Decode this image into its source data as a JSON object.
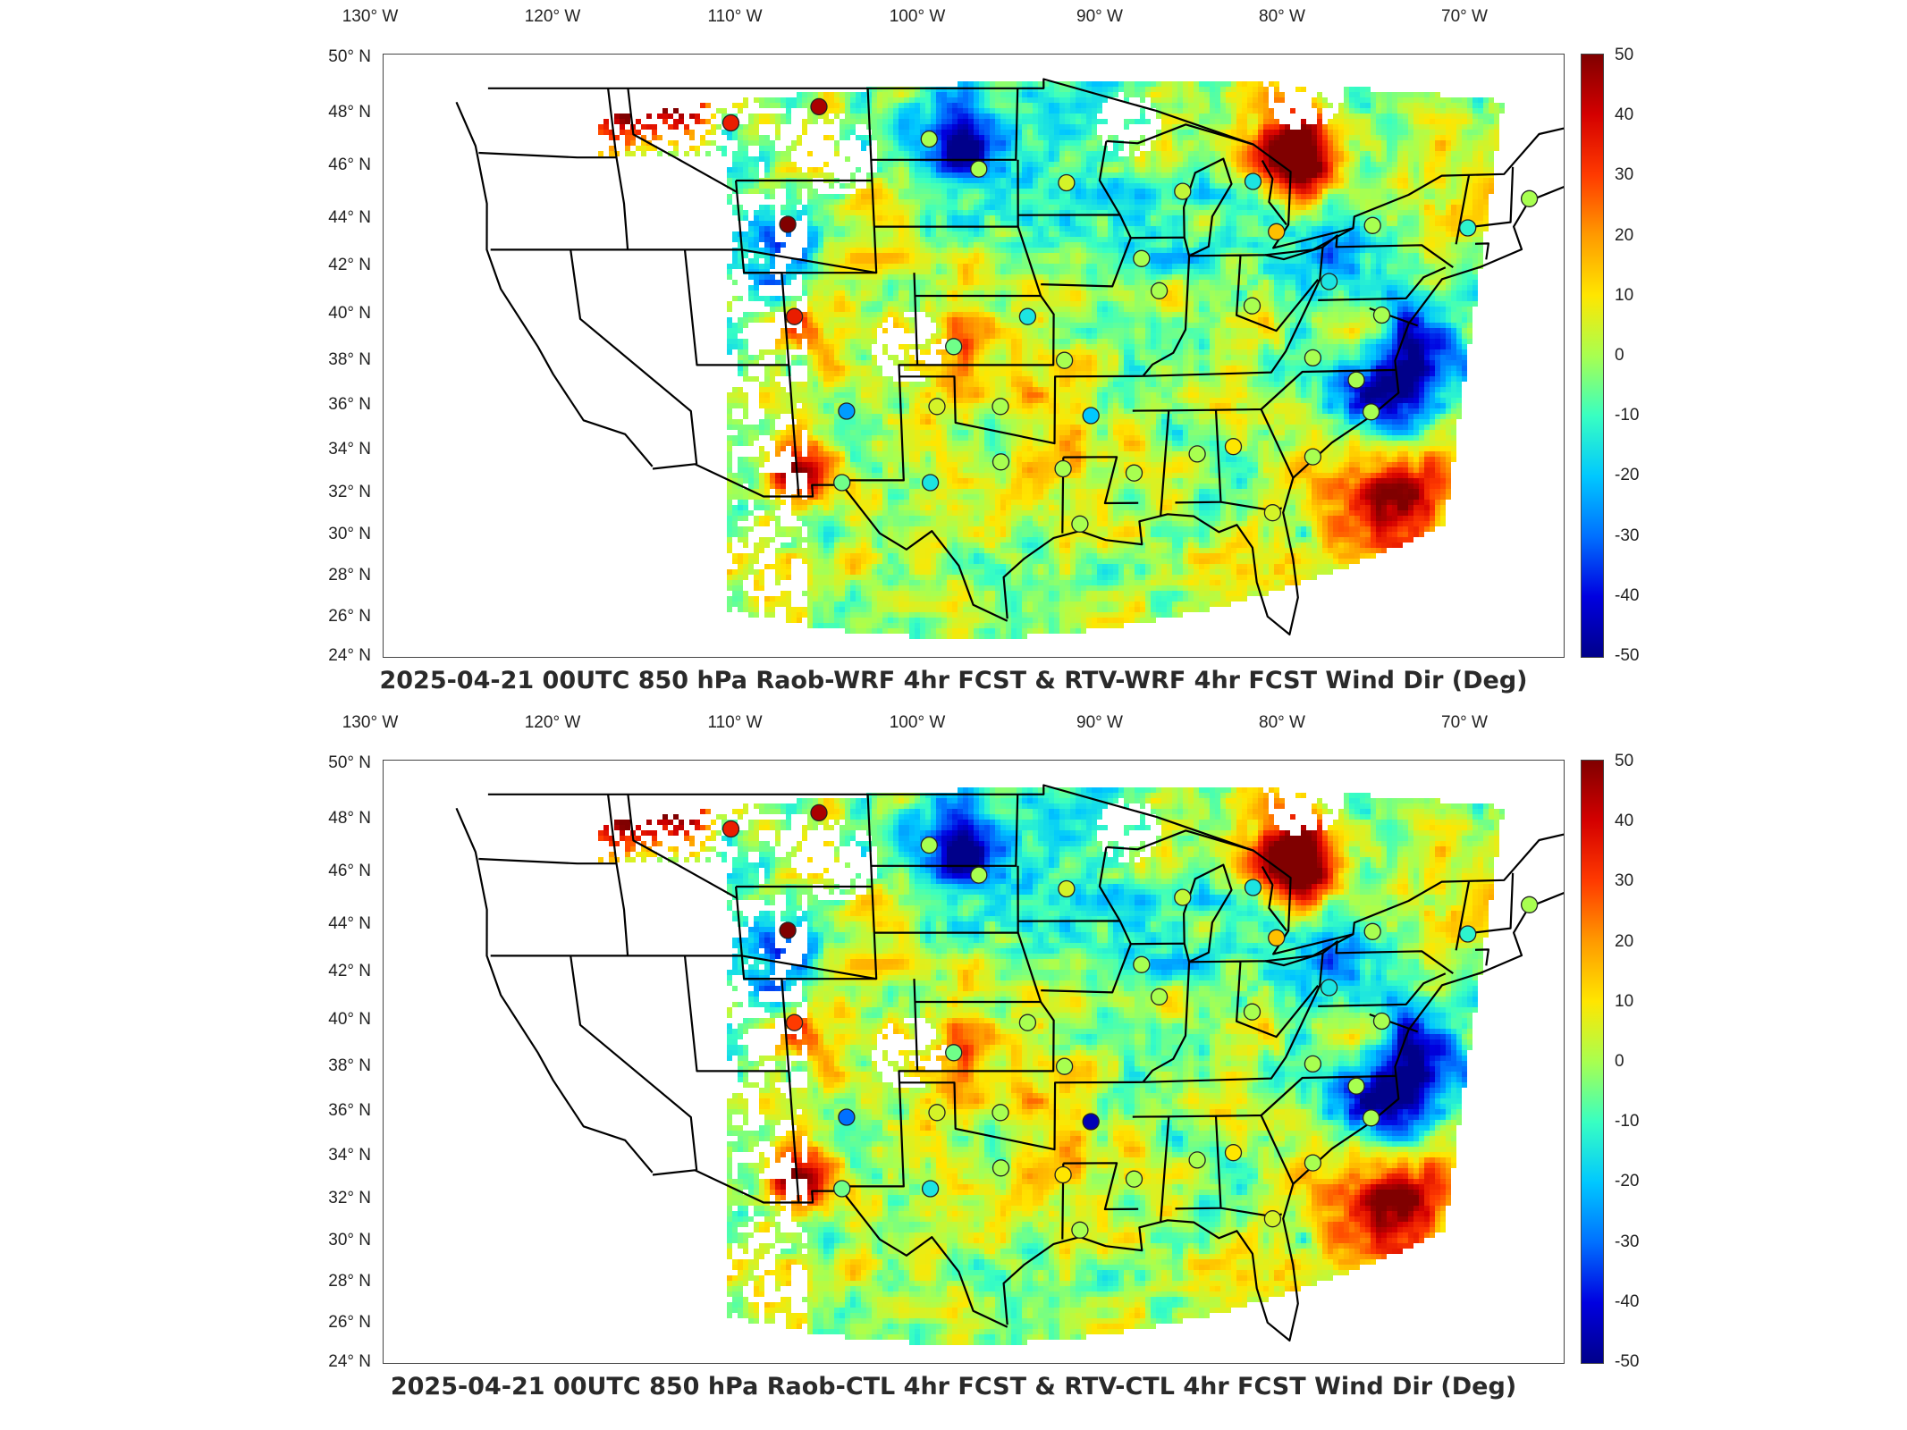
{
  "lon_labels": [
    "130° W",
    "120° W",
    "110° W",
    "100° W",
    "90° W",
    "80° W",
    "70° W"
  ],
  "lat_labels": [
    "50° N",
    "48° N",
    "46° N",
    "44° N",
    "42° N",
    "40° N",
    "38° N",
    "36° N",
    "34° N",
    "32° N",
    "30° N",
    "28° N",
    "26° N",
    "24° N"
  ],
  "colorbar": {
    "ticks": [
      "50",
      "40",
      "30",
      "20",
      "10",
      "0",
      "-10",
      "-20",
      "-30",
      "-40",
      "-50"
    ],
    "colors": [
      "#800000",
      "#d40000",
      "#ff3a00",
      "#ff9a00",
      "#ffe600",
      "#a8ff50",
      "#38ffc2",
      "#00c8ff",
      "#0070ff",
      "#0000e0",
      "#00008a"
    ]
  },
  "panels": [
    {
      "title": "2025-04-21 00UTC 850 hPa Raob-WRF 4hr FCST & RTV-WRF 4hr FCST Wind Dir (Deg)",
      "stations": [
        {
          "lon": -111.0,
          "lat": 47.5,
          "value": 35
        },
        {
          "lon": -106.5,
          "lat": 48.2,
          "value": 45
        },
        {
          "lon": -101.0,
          "lat": 46.8,
          "value": 0
        },
        {
          "lon": -98.5,
          "lat": 45.5,
          "value": 0
        },
        {
          "lon": -94.0,
          "lat": 44.9,
          "value": 5
        },
        {
          "lon": -88.0,
          "lat": 44.5,
          "value": 3
        },
        {
          "lon": -84.4,
          "lat": 44.9,
          "value": -15
        },
        {
          "lon": -83.0,
          "lat": 42.7,
          "value": 15
        },
        {
          "lon": -78.0,
          "lat": 42.9,
          "value": 0
        },
        {
          "lon": -73.0,
          "lat": 42.7,
          "value": -12
        },
        {
          "lon": -70.0,
          "lat": 43.9,
          "value": 0
        },
        {
          "lon": -108.5,
          "lat": 43.1,
          "value": 50
        },
        {
          "lon": -108.5,
          "lat": 39.1,
          "value": 35
        },
        {
          "lon": -96.0,
          "lat": 39.1,
          "value": -15
        },
        {
          "lon": -90.0,
          "lat": 41.6,
          "value": 0
        },
        {
          "lon": -89.0,
          "lat": 40.2,
          "value": 0
        },
        {
          "lon": -84.0,
          "lat": 39.5,
          "value": 0
        },
        {
          "lon": -80.0,
          "lat": 40.5,
          "value": -15
        },
        {
          "lon": -100.0,
          "lat": 37.8,
          "value": -5
        },
        {
          "lon": -94.0,
          "lat": 37.2,
          "value": 0
        },
        {
          "lon": -80.5,
          "lat": 37.2,
          "value": 0
        },
        {
          "lon": -77.0,
          "lat": 39.0,
          "value": 0
        },
        {
          "lon": -78.0,
          "lat": 36.2,
          "value": 0
        },
        {
          "lon": -106.0,
          "lat": 35.0,
          "value": -25
        },
        {
          "lon": -101.0,
          "lat": 35.2,
          "value": 5
        },
        {
          "lon": -97.5,
          "lat": 35.2,
          "value": 0
        },
        {
          "lon": -92.5,
          "lat": 34.8,
          "value": -20
        },
        {
          "lon": -106.5,
          "lat": 31.9,
          "value": -5
        },
        {
          "lon": -101.5,
          "lat": 31.9,
          "value": -15
        },
        {
          "lon": -97.5,
          "lat": 32.8,
          "value": 0
        },
        {
          "lon": -94.0,
          "lat": 32.5,
          "value": 0
        },
        {
          "lon": -90.0,
          "lat": 32.3,
          "value": 0
        },
        {
          "lon": -86.5,
          "lat": 33.1,
          "value": 0
        },
        {
          "lon": -84.5,
          "lat": 33.4,
          "value": 10
        },
        {
          "lon": -80.0,
          "lat": 32.9,
          "value": 0
        },
        {
          "lon": -93.0,
          "lat": 30.1,
          "value": 0
        },
        {
          "lon": -82.0,
          "lat": 30.5,
          "value": 5
        },
        {
          "lon": -77.0,
          "lat": 34.8,
          "value": 0
        }
      ]
    },
    {
      "title": "2025-04-21 00UTC 850 hPa Raob-CTL 4hr FCST & RTV-CTL 4hr FCST Wind Dir (Deg)",
      "stations": [
        {
          "lon": -111.0,
          "lat": 47.5,
          "value": 35
        },
        {
          "lon": -106.5,
          "lat": 48.2,
          "value": 45
        },
        {
          "lon": -101.0,
          "lat": 46.8,
          "value": 0
        },
        {
          "lon": -98.5,
          "lat": 45.5,
          "value": 0
        },
        {
          "lon": -94.0,
          "lat": 44.9,
          "value": 5
        },
        {
          "lon": -88.0,
          "lat": 44.5,
          "value": 3
        },
        {
          "lon": -84.4,
          "lat": 44.9,
          "value": -15
        },
        {
          "lon": -83.0,
          "lat": 42.7,
          "value": 15
        },
        {
          "lon": -78.0,
          "lat": 42.9,
          "value": 0
        },
        {
          "lon": -73.0,
          "lat": 42.7,
          "value": -12
        },
        {
          "lon": -70.0,
          "lat": 43.9,
          "value": 0
        },
        {
          "lon": -108.5,
          "lat": 43.1,
          "value": 50
        },
        {
          "lon": -108.5,
          "lat": 39.1,
          "value": 30
        },
        {
          "lon": -96.0,
          "lat": 39.1,
          "value": 0
        },
        {
          "lon": -90.0,
          "lat": 41.6,
          "value": 0
        },
        {
          "lon": -89.0,
          "lat": 40.2,
          "value": 0
        },
        {
          "lon": -84.0,
          "lat": 39.5,
          "value": 0
        },
        {
          "lon": -80.0,
          "lat": 40.5,
          "value": -15
        },
        {
          "lon": -100.0,
          "lat": 37.8,
          "value": -5
        },
        {
          "lon": -94.0,
          "lat": 37.2,
          "value": 0
        },
        {
          "lon": -80.5,
          "lat": 37.2,
          "value": 0
        },
        {
          "lon": -77.0,
          "lat": 39.0,
          "value": 0
        },
        {
          "lon": -78.0,
          "lat": 36.2,
          "value": 0
        },
        {
          "lon": -106.0,
          "lat": 35.0,
          "value": -30
        },
        {
          "lon": -101.0,
          "lat": 35.2,
          "value": 5
        },
        {
          "lon": -97.5,
          "lat": 35.2,
          "value": 0
        },
        {
          "lon": -92.5,
          "lat": 34.8,
          "value": -45
        },
        {
          "lon": -106.5,
          "lat": 31.9,
          "value": -5
        },
        {
          "lon": -101.5,
          "lat": 31.9,
          "value": -15
        },
        {
          "lon": -97.5,
          "lat": 32.8,
          "value": 0
        },
        {
          "lon": -94.0,
          "lat": 32.5,
          "value": 10
        },
        {
          "lon": -90.0,
          "lat": 32.3,
          "value": 0
        },
        {
          "lon": -86.5,
          "lat": 33.1,
          "value": 0
        },
        {
          "lon": -84.5,
          "lat": 33.4,
          "value": 10
        },
        {
          "lon": -80.0,
          "lat": 32.9,
          "value": 0
        },
        {
          "lon": -93.0,
          "lat": 30.1,
          "value": 0
        },
        {
          "lon": -82.0,
          "lat": 30.5,
          "value": 5
        },
        {
          "lon": -77.0,
          "lat": 34.8,
          "value": 0
        }
      ]
    }
  ]
}
